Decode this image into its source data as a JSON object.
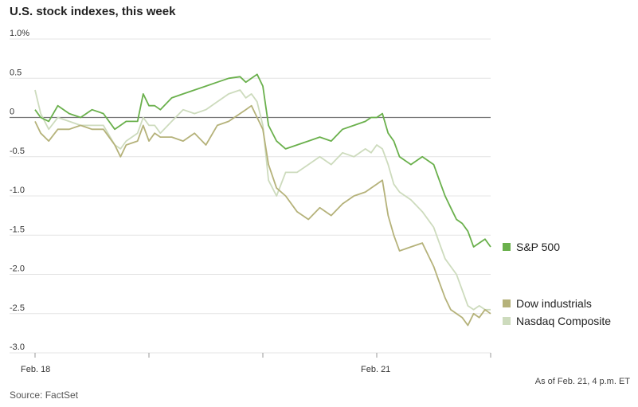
{
  "title": "U.S. stock indexes, this week",
  "source": "Source: FactSet",
  "as_of": "As of Feb. 21, 4 p.m. ET",
  "chart_data": {
    "type": "line",
    "title": "U.S. stock indexes, this week",
    "xlabel": "",
    "ylabel": "",
    "x_ticks": [
      "Feb. 18",
      "",
      "",
      "Feb. 21",
      ""
    ],
    "y_ticks": [
      {
        "v": 1.0,
        "label": "1.0%"
      },
      {
        "v": 0.5,
        "label": "0.5"
      },
      {
        "v": 0,
        "label": "0"
      },
      {
        "v": -0.5,
        "label": "-0.5"
      },
      {
        "v": -1.0,
        "label": "-1.0"
      },
      {
        "v": -1.5,
        "label": "-1.5"
      },
      {
        "v": -2.0,
        "label": "-2.0"
      },
      {
        "v": -2.5,
        "label": "-2.5"
      },
      {
        "v": -3.0,
        "label": "-3.0"
      }
    ],
    "ylim": [
      -3.0,
      1.0
    ],
    "xlim": [
      0,
      4
    ],
    "grid": true,
    "legend": "right",
    "series": [
      {
        "name": "S&P 500",
        "color": "#6ab04c",
        "x": [
          0,
          0.05,
          0.12,
          0.2,
          0.3,
          0.4,
          0.5,
          0.6,
          0.7,
          0.75,
          0.8,
          0.9,
          0.95,
          1.0,
          1.05,
          1.1,
          1.2,
          1.3,
          1.4,
          1.5,
          1.6,
          1.7,
          1.8,
          1.85,
          1.9,
          1.95,
          2.0,
          2.05,
          2.12,
          2.2,
          2.3,
          2.4,
          2.5,
          2.6,
          2.7,
          2.8,
          2.9,
          2.95,
          3.0,
          3.05,
          3.1,
          3.15,
          3.2,
          3.3,
          3.4,
          3.5,
          3.55,
          3.6,
          3.65,
          3.7,
          3.75,
          3.8,
          3.85,
          3.9,
          3.95,
          4.0
        ],
        "y": [
          0.1,
          0.0,
          -0.05,
          0.15,
          0.05,
          0.0,
          0.1,
          0.05,
          -0.15,
          -0.1,
          -0.05,
          -0.05,
          0.3,
          0.15,
          0.15,
          0.1,
          0.25,
          0.3,
          0.35,
          0.4,
          0.45,
          0.5,
          0.52,
          0.45,
          0.5,
          0.55,
          0.4,
          -0.1,
          -0.3,
          -0.4,
          -0.35,
          -0.3,
          -0.25,
          -0.3,
          -0.15,
          -0.1,
          -0.05,
          0.0,
          0.0,
          0.05,
          -0.2,
          -0.3,
          -0.5,
          -0.6,
          -0.5,
          -0.6,
          -0.8,
          -1.0,
          -1.15,
          -1.3,
          -1.35,
          -1.45,
          -1.65,
          -1.6,
          -1.55,
          -1.65
        ]
      },
      {
        "name": "Dow industrials",
        "color": "#b5b27a",
        "x": [
          0,
          0.05,
          0.12,
          0.2,
          0.3,
          0.4,
          0.5,
          0.6,
          0.7,
          0.75,
          0.8,
          0.9,
          0.95,
          1.0,
          1.05,
          1.1,
          1.2,
          1.3,
          1.4,
          1.5,
          1.6,
          1.7,
          1.8,
          1.85,
          1.9,
          1.95,
          2.0,
          2.05,
          2.12,
          2.2,
          2.3,
          2.4,
          2.5,
          2.6,
          2.7,
          2.8,
          2.9,
          2.95,
          3.0,
          3.05,
          3.1,
          3.15,
          3.2,
          3.3,
          3.4,
          3.5,
          3.55,
          3.6,
          3.65,
          3.7,
          3.75,
          3.8,
          3.85,
          3.9,
          3.95,
          4.0
        ],
        "y": [
          -0.05,
          -0.2,
          -0.3,
          -0.15,
          -0.15,
          -0.1,
          -0.15,
          -0.15,
          -0.35,
          -0.5,
          -0.35,
          -0.3,
          -0.1,
          -0.3,
          -0.2,
          -0.25,
          -0.25,
          -0.3,
          -0.2,
          -0.35,
          -0.1,
          -0.05,
          0.05,
          0.1,
          0.15,
          0.0,
          -0.15,
          -0.6,
          -0.9,
          -1.0,
          -1.2,
          -1.3,
          -1.15,
          -1.25,
          -1.1,
          -1.0,
          -0.95,
          -0.9,
          -0.85,
          -0.8,
          -1.25,
          -1.5,
          -1.7,
          -1.65,
          -1.6,
          -1.9,
          -2.1,
          -2.3,
          -2.45,
          -2.5,
          -2.55,
          -2.65,
          -2.5,
          -2.55,
          -2.45,
          -2.5
        ]
      },
      {
        "name": "Nasdaq Composite",
        "color": "#cddbbd",
        "x": [
          0,
          0.05,
          0.12,
          0.2,
          0.3,
          0.4,
          0.5,
          0.6,
          0.7,
          0.75,
          0.8,
          0.9,
          0.95,
          1.0,
          1.05,
          1.1,
          1.2,
          1.3,
          1.4,
          1.5,
          1.6,
          1.7,
          1.8,
          1.85,
          1.9,
          1.95,
          2.0,
          2.05,
          2.12,
          2.2,
          2.3,
          2.4,
          2.5,
          2.6,
          2.7,
          2.8,
          2.9,
          2.95,
          3.0,
          3.05,
          3.1,
          3.15,
          3.2,
          3.3,
          3.4,
          3.5,
          3.55,
          3.6,
          3.65,
          3.7,
          3.75,
          3.8,
          3.85,
          3.9,
          3.95,
          4.0
        ],
        "y": [
          0.35,
          0.05,
          -0.15,
          0.0,
          -0.05,
          -0.1,
          -0.1,
          -0.1,
          -0.35,
          -0.4,
          -0.3,
          -0.2,
          0.0,
          -0.1,
          -0.1,
          -0.2,
          -0.05,
          0.1,
          0.05,
          0.1,
          0.2,
          0.3,
          0.35,
          0.25,
          0.3,
          0.2,
          -0.1,
          -0.8,
          -1.0,
          -0.7,
          -0.7,
          -0.6,
          -0.5,
          -0.6,
          -0.45,
          -0.5,
          -0.4,
          -0.45,
          -0.35,
          -0.4,
          -0.6,
          -0.85,
          -0.95,
          -1.05,
          -1.2,
          -1.4,
          -1.6,
          -1.8,
          -1.9,
          -2.0,
          -2.2,
          -2.4,
          -2.45,
          -2.4,
          -2.45,
          -2.45
        ]
      }
    ]
  }
}
